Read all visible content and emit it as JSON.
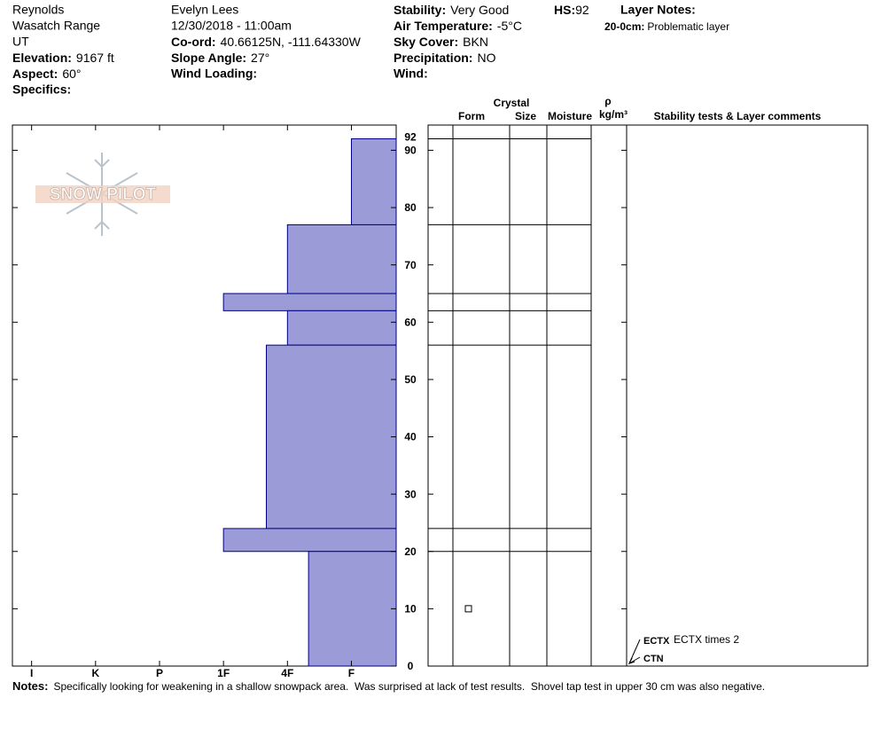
{
  "header": {
    "location": [
      "Reynolds",
      "Wasatch Range",
      "UT"
    ],
    "elevation": {
      "label": "Elevation:",
      "value": "9167 ft"
    },
    "aspect": {
      "label": "Aspect:",
      "value": "60°"
    },
    "specifics": {
      "label": "Specifics:"
    },
    "observer": "Evelyn Lees",
    "datetime": "12/30/2018 - 11:00am",
    "coord": {
      "label": "Co-ord:",
      "value": "40.66125N, -111.64330W"
    },
    "slope": {
      "label": "Slope Angle:",
      "value": "27°"
    },
    "wind_loading": {
      "label": "Wind Loading:"
    },
    "stability": {
      "label": "Stability:",
      "value": "Very Good"
    },
    "air_temp": {
      "label": "Air Temperature:",
      "value": "-5°C"
    },
    "sky_cover": {
      "label": "Sky Cover:",
      "value": "BKN"
    },
    "precipitation": {
      "label": "Precipitation:",
      "value": "NO"
    },
    "wind": {
      "label": "Wind:"
    },
    "hs": {
      "label": "HS:",
      "value": "92"
    },
    "layer_notes": {
      "label": "Layer Notes:",
      "items": [
        {
          "range": "20-0cm:",
          "text": "Problematic layer"
        }
      ]
    }
  },
  "logo": "SNOW PILOT",
  "columns": {
    "crystal": "Crystal",
    "form": "Form",
    "size": "Size",
    "moisture": "Moisture",
    "rho": "ρ",
    "density_unit": "kg/m³",
    "comments": "Stability tests & Layer comments"
  },
  "chart_data": {
    "type": "snow-profile",
    "hs": 92,
    "xlim": [
      6.3,
      0.3
    ],
    "xticks": [
      {
        "value": 6,
        "label": "I"
      },
      {
        "value": 5,
        "label": "K"
      },
      {
        "value": 4,
        "label": "P"
      },
      {
        "value": 3,
        "label": "1F"
      },
      {
        "value": 2,
        "label": "4F"
      },
      {
        "value": 1,
        "label": "F"
      }
    ],
    "ylim": [
      0,
      94.4
    ],
    "yticks": [
      0,
      10,
      20,
      30,
      40,
      50,
      60,
      70,
      80,
      90
    ],
    "color": "#9b9bd7",
    "layers": [
      {
        "top": 92,
        "bottom": 77,
        "hardness": 1
      },
      {
        "top": 77,
        "bottom": 65,
        "hardness": 2
      },
      {
        "top": 65,
        "bottom": 62,
        "hardness": 3
      },
      {
        "top": 62,
        "bottom": 56,
        "hardness": 2
      },
      {
        "top": 56,
        "bottom": 24,
        "hardness": 2.33
      },
      {
        "top": 24,
        "bottom": 20,
        "hardness": 3
      },
      {
        "top": 20,
        "bottom": 0,
        "hardness": 1.67
      }
    ],
    "form_symbols": [
      {
        "depth": 10
      }
    ],
    "tests": [
      {
        "code": "ECTX",
        "comment": "ECTX times 2",
        "depth": 0
      },
      {
        "code": "CTN",
        "depth": 0
      }
    ]
  },
  "notes": {
    "label": "Notes:",
    "text": "Specifically looking for weakening in a shallow snowpack area.  Was surprised at lack of test results.  Shovel tap test in upper 30 cm was also negative."
  }
}
